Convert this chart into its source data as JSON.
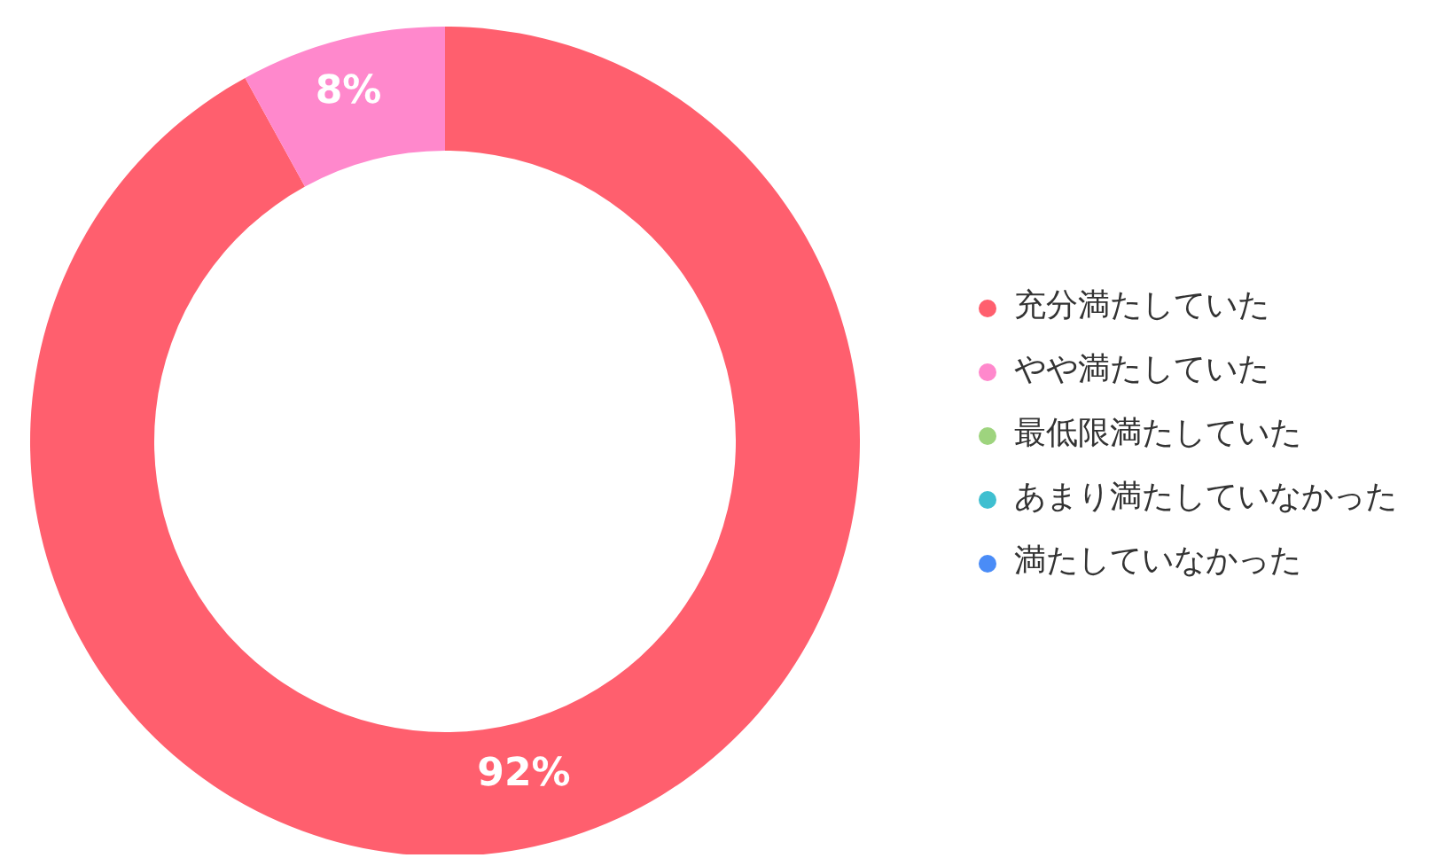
{
  "chart_data": {
    "type": "donut",
    "categories": [
      "充分満たしていた",
      "やや満たしていた",
      "最低限満たしていた",
      "あまり満たしていなかった",
      "満たしていなかった"
    ],
    "values": [
      92,
      8,
      0,
      0,
      0
    ],
    "colors": [
      "#ff5f6e",
      "#ff88cc",
      "#9ed47e",
      "#3fbfd0",
      "#4a8cf7"
    ],
    "value_labels": [
      "92%",
      "8%",
      null,
      null,
      null
    ],
    "legend": "right"
  }
}
